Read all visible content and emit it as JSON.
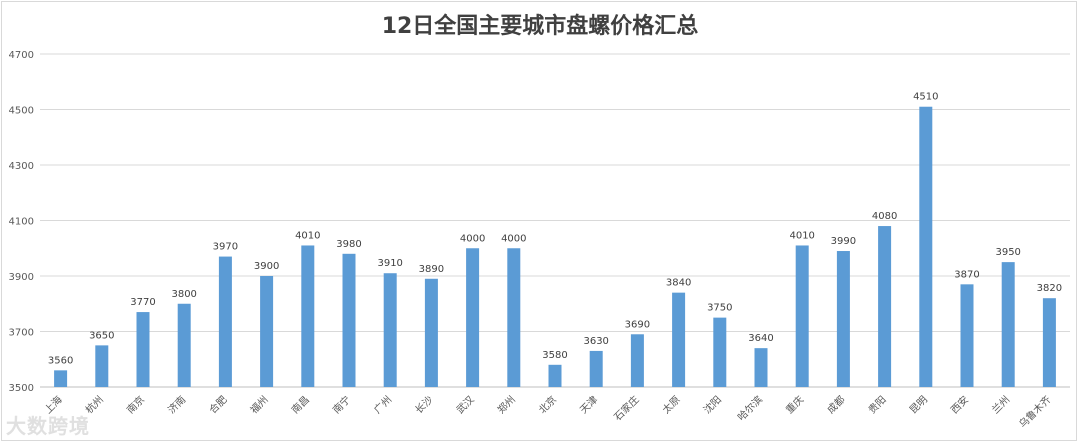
{
  "chart_data": {
    "type": "bar",
    "title": "12日全国主要城市盘螺价格汇总",
    "categories": [
      "上海",
      "杭州",
      "南京",
      "济南",
      "合肥",
      "福州",
      "南昌",
      "南宁",
      "广州",
      "长沙",
      "武汉",
      "郑州",
      "北京",
      "天津",
      "石家庄",
      "太原",
      "沈阳",
      "哈尔滨",
      "重庆",
      "成都",
      "贵阳",
      "昆明",
      "西安",
      "兰州",
      "乌鲁木齐"
    ],
    "values": [
      3560,
      3650,
      3770,
      3800,
      3970,
      3900,
      4010,
      3980,
      3910,
      3890,
      4000,
      4000,
      3580,
      3630,
      3690,
      3840,
      3750,
      3640,
      4010,
      3990,
      4080,
      4510,
      3870,
      3950,
      3820
    ],
    "ylim": [
      3500,
      4700
    ],
    "yticks": [
      3500,
      3700,
      3900,
      4100,
      4300,
      4500,
      4700
    ],
    "grid": true,
    "bar_color": "#5b9bd5",
    "xlabel": "",
    "ylabel": ""
  },
  "watermark": "大数跨境"
}
